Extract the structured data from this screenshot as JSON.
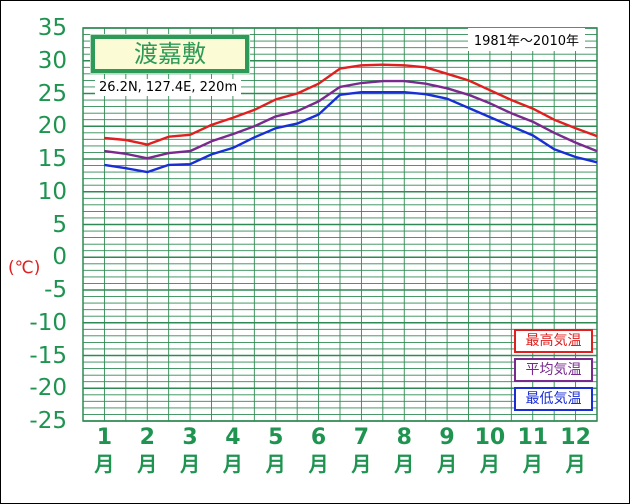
{
  "station": {
    "name": "渡嘉敷",
    "coordinates": "26.2N,  127.4E,  220m",
    "period": "1981年〜2010年"
  },
  "axis": {
    "y_unit_label": "(℃)",
    "y_ticks": [
      "35",
      "30",
      "25",
      "20",
      "15",
      "10",
      "5",
      "0",
      "-5",
      "-10",
      "-15",
      "-20",
      "-25"
    ],
    "month_numbers": [
      "1",
      "2",
      "3",
      "4",
      "5",
      "6",
      "7",
      "8",
      "9",
      "10",
      "11",
      "12"
    ],
    "month_suffix": "月"
  },
  "legend": {
    "max": "最高気温",
    "mean": "平均気温",
    "min": "最低気温"
  },
  "colors": {
    "background": "#ffffff",
    "plot_background": "#ffffff",
    "grid": "#2e8a52",
    "axis_text": "#1e9450",
    "max": "#e02020",
    "mean": "#7a2a8e",
    "min": "#1a2ed6"
  },
  "chart_data": {
    "type": "line",
    "title": "渡嘉敷",
    "xlabel": "",
    "ylabel": "(℃)",
    "ylim": [
      -25,
      35
    ],
    "grid": true,
    "minor_grid_step": 1,
    "categories": [
      "1月",
      "2月",
      "3月",
      "4月",
      "5月",
      "6月",
      "7月",
      "8月",
      "9月",
      "10月",
      "11月",
      "12月"
    ],
    "x": [
      1,
      1.5,
      2,
      2.5,
      3,
      3.5,
      4,
      4.5,
      5,
      5.5,
      6,
      6.5,
      7,
      7.5,
      8,
      8.5,
      9,
      9.5,
      10,
      10.5,
      11,
      11.5,
      12,
      12.5
    ],
    "legend_position": "bottom-right",
    "series": [
      {
        "name": "最高気温",
        "color": "#e02020",
        "values": [
          18.2,
          17.9,
          17.2,
          18.4,
          18.7,
          20.2,
          21.3,
          22.5,
          24.1,
          25.0,
          26.5,
          28.8,
          29.3,
          29.4,
          29.3,
          29.0,
          28.0,
          27.0,
          25.5,
          24.0,
          22.7,
          21.0,
          19.7,
          18.5
        ]
      },
      {
        "name": "平均気温",
        "color": "#7a2a8e",
        "values": [
          16.2,
          15.8,
          15.1,
          15.9,
          16.2,
          17.7,
          18.8,
          20.0,
          21.5,
          22.3,
          23.8,
          26.0,
          26.6,
          26.9,
          26.9,
          26.5,
          25.8,
          24.8,
          23.5,
          22.0,
          20.7,
          19.0,
          17.5,
          16.2
        ]
      },
      {
        "name": "最低気温",
        "color": "#1a2ed6",
        "values": [
          14.1,
          13.6,
          13.0,
          14.1,
          14.2,
          15.7,
          16.7,
          18.3,
          19.7,
          20.4,
          21.8,
          24.8,
          25.2,
          25.2,
          25.2,
          24.9,
          24.2,
          22.8,
          21.4,
          20.0,
          18.6,
          16.5,
          15.3,
          14.5
        ]
      }
    ]
  }
}
